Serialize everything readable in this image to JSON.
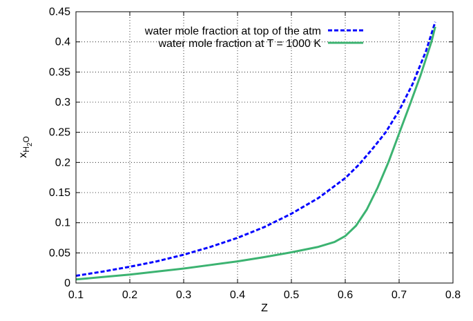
{
  "chart_data": {
    "type": "line",
    "title": "",
    "xlabel": "Z",
    "ylabel": {
      "base": "x",
      "sub_main": "H",
      "sub_digit": "2",
      "sub_end": "O"
    },
    "xlim": [
      0.1,
      0.8
    ],
    "ylim": [
      0,
      0.45
    ],
    "x_ticks": [
      0.1,
      0.2,
      0.3,
      0.4,
      0.5,
      0.6,
      0.7,
      0.8
    ],
    "x_tick_labels": [
      "0.1",
      "0.2",
      "0.3",
      "0.4",
      "0.5",
      "0.6",
      "0.7",
      "0.8"
    ],
    "y_ticks": [
      0,
      0.05,
      0.1,
      0.15,
      0.2,
      0.25,
      0.3,
      0.35,
      0.4,
      0.45
    ],
    "y_tick_labels": [
      "0",
      "0.05",
      "0.1",
      "0.15",
      "0.2",
      "0.25",
      "0.3",
      "0.35",
      "0.4",
      "0.45"
    ],
    "grid": true,
    "legend_position": "top-right",
    "series": [
      {
        "name": "water mole fraction at top of the atm",
        "color": "#0000ff",
        "line_style": "dashed",
        "x": [
          0.1,
          0.15,
          0.2,
          0.25,
          0.3,
          0.35,
          0.4,
          0.45,
          0.5,
          0.55,
          0.6,
          0.625,
          0.65,
          0.675,
          0.7,
          0.725,
          0.75,
          0.767
        ],
        "y": [
          0.012,
          0.019,
          0.027,
          0.036,
          0.047,
          0.06,
          0.075,
          0.093,
          0.115,
          0.141,
          0.174,
          0.196,
          0.222,
          0.25,
          0.286,
          0.33,
          0.385,
          0.433
        ]
      },
      {
        "name": "water mole fraction at T = 1000 K",
        "color": "#3cb371",
        "line_style": "solid",
        "x": [
          0.1,
          0.15,
          0.2,
          0.25,
          0.3,
          0.35,
          0.4,
          0.45,
          0.5,
          0.55,
          0.58,
          0.6,
          0.62,
          0.64,
          0.66,
          0.68,
          0.7,
          0.72,
          0.74,
          0.76,
          0.767
        ],
        "y": [
          0.006,
          0.01,
          0.014,
          0.019,
          0.024,
          0.03,
          0.036,
          0.043,
          0.051,
          0.06,
          0.068,
          0.078,
          0.095,
          0.122,
          0.158,
          0.2,
          0.248,
          0.296,
          0.345,
          0.4,
          0.425
        ]
      }
    ]
  }
}
